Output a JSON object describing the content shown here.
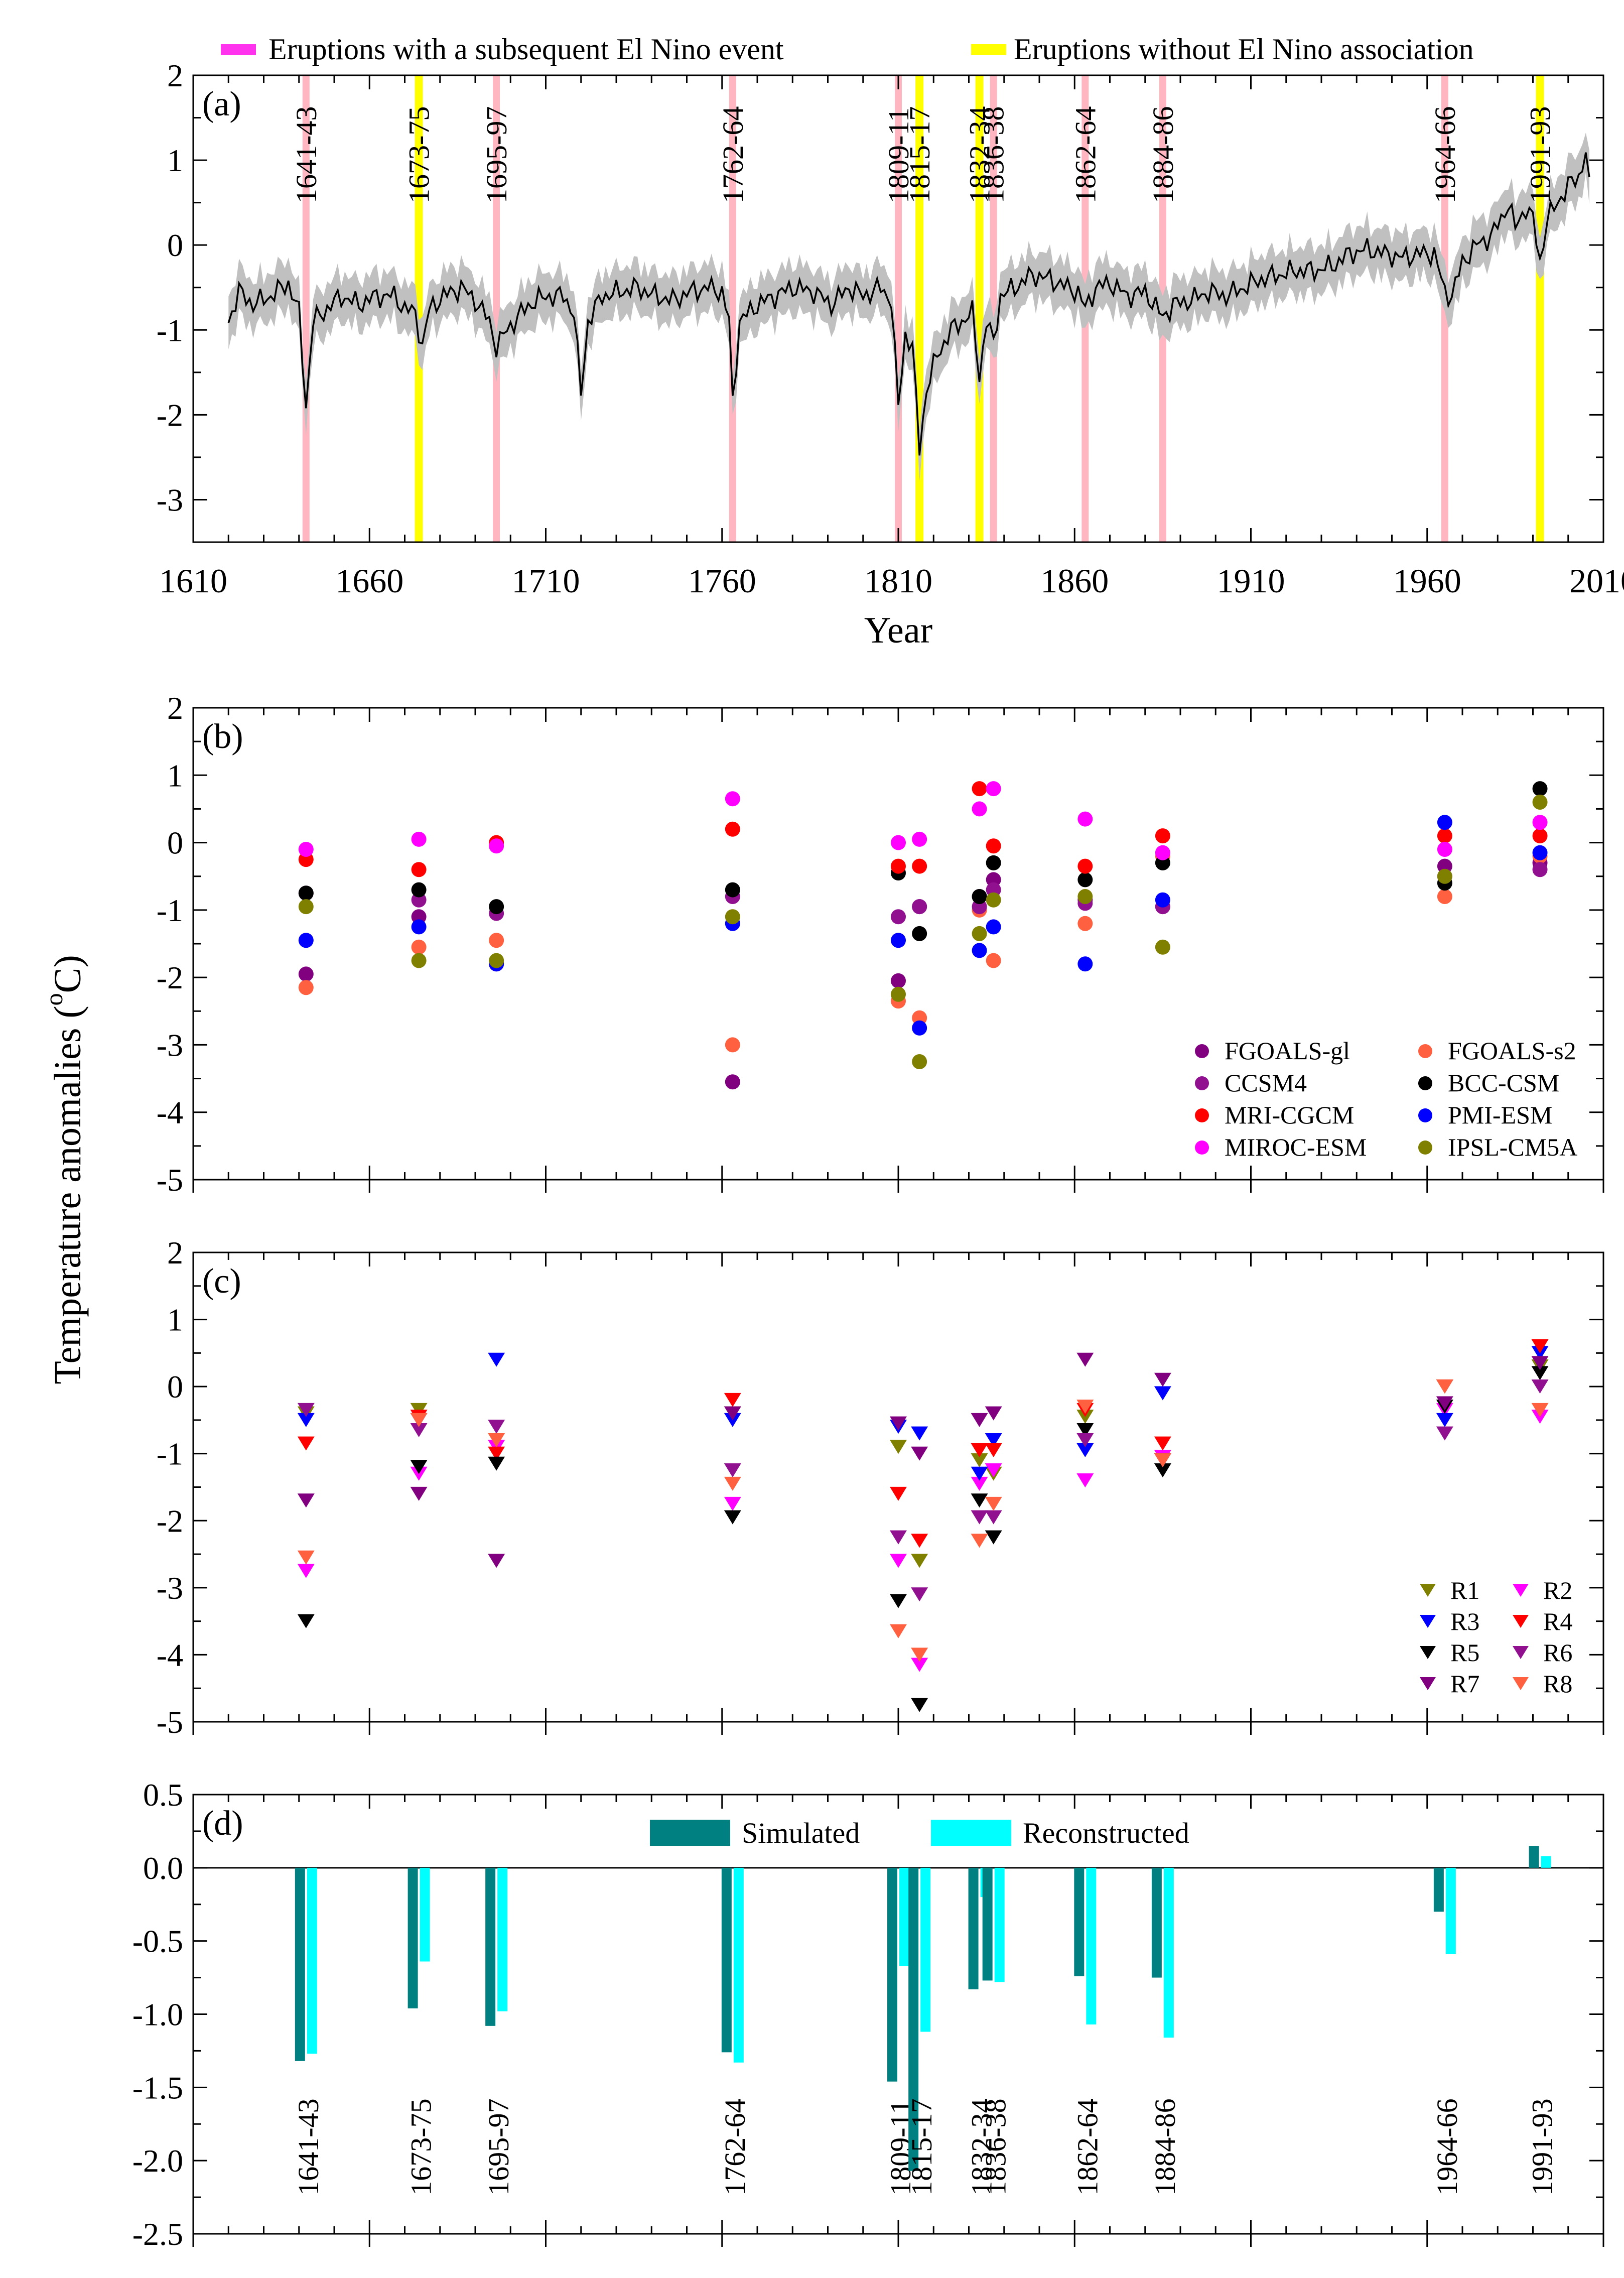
{
  "figure": {
    "y_axis_label_main": "Temperature anomalies (",
    "y_axis_label_sup": "o",
    "y_axis_label_end": "C)",
    "legend_top": {
      "pink_label": "Eruptions with a subsequent El Nino event",
      "yellow_label": "Eruptions without El Nino association"
    }
  },
  "colors": {
    "pink_band": "#ffb6c1",
    "pink_legend": "#ff33ee",
    "yellow_band": "#ffff00",
    "line": "#000000",
    "envelope": "#c0c0c0",
    "simulated": "#008080",
    "reconstructed": "#00ffff"
  },
  "chart_data": [
    {
      "panel": "(a)",
      "type": "line",
      "x_range": [
        1610,
        2010
      ],
      "ylim": [
        -3.5,
        2
      ],
      "xticks": [
        1610,
        1660,
        1710,
        1760,
        1810,
        1860,
        1910,
        1960,
        2010
      ],
      "yticks": [
        -3,
        -2,
        -1,
        0,
        1,
        2
      ],
      "xlabel": "Year",
      "eruption_bands": [
        {
          "label": "1641-43",
          "year": 1642,
          "kind": "pink"
        },
        {
          "label": "1673-75",
          "year": 1674,
          "kind": "yellow"
        },
        {
          "label": "1695-97",
          "year": 1696,
          "kind": "pink"
        },
        {
          "label": "1762-64",
          "year": 1763,
          "kind": "pink"
        },
        {
          "label": "1809-11",
          "year": 1810,
          "kind": "pink"
        },
        {
          "label": "1815-17",
          "year": 1816,
          "kind": "yellow"
        },
        {
          "label": "1832-34",
          "year": 1833,
          "kind": "yellow"
        },
        {
          "label": "1836-38",
          "year": 1837,
          "kind": "pink"
        },
        {
          "label": "1862-64",
          "year": 1863,
          "kind": "pink"
        },
        {
          "label": "1884-86",
          "year": 1885,
          "kind": "pink"
        },
        {
          "label": "1964-66",
          "year": 1965,
          "kind": "pink"
        },
        {
          "label": "1991-93",
          "year": 1992,
          "kind": "yellow"
        }
      ],
      "series_anchors": [
        [
          1620,
          -0.9
        ],
        [
          1623,
          -0.55
        ],
        [
          1627,
          -0.7
        ],
        [
          1632,
          -0.6
        ],
        [
          1637,
          -0.45
        ],
        [
          1640,
          -0.8
        ],
        [
          1642,
          -1.9
        ],
        [
          1644,
          -0.9
        ],
        [
          1648,
          -0.75
        ],
        [
          1652,
          -0.6
        ],
        [
          1657,
          -0.7
        ],
        [
          1662,
          -0.6
        ],
        [
          1667,
          -0.6
        ],
        [
          1670,
          -0.75
        ],
        [
          1673,
          -0.8
        ],
        [
          1675,
          -1.2
        ],
        [
          1677,
          -0.75
        ],
        [
          1681,
          -0.6
        ],
        [
          1686,
          -0.5
        ],
        [
          1690,
          -0.65
        ],
        [
          1694,
          -0.9
        ],
        [
          1696,
          -1.2
        ],
        [
          1699,
          -1.0
        ],
        [
          1703,
          -0.8
        ],
        [
          1707,
          -0.65
        ],
        [
          1711,
          -0.6
        ],
        [
          1715,
          -0.6
        ],
        [
          1718,
          -0.8
        ],
        [
          1720,
          -1.75
        ],
        [
          1722,
          -0.9
        ],
        [
          1726,
          -0.6
        ],
        [
          1731,
          -0.55
        ],
        [
          1736,
          -0.5
        ],
        [
          1741,
          -0.6
        ],
        [
          1746,
          -0.65
        ],
        [
          1751,
          -0.55
        ],
        [
          1756,
          -0.5
        ],
        [
          1760,
          -0.55
        ],
        [
          1762,
          -0.9
        ],
        [
          1763,
          -1.85
        ],
        [
          1765,
          -0.9
        ],
        [
          1770,
          -0.7
        ],
        [
          1775,
          -0.6
        ],
        [
          1780,
          -0.5
        ],
        [
          1786,
          -0.55
        ],
        [
          1791,
          -0.7
        ],
        [
          1796,
          -0.5
        ],
        [
          1800,
          -0.6
        ],
        [
          1805,
          -0.5
        ],
        [
          1808,
          -0.65
        ],
        [
          1810,
          -1.9
        ],
        [
          1812,
          -1.05
        ],
        [
          1814,
          -1.2
        ],
        [
          1816,
          -2.4
        ],
        [
          1818,
          -1.7
        ],
        [
          1821,
          -1.3
        ],
        [
          1825,
          -1.0
        ],
        [
          1828,
          -0.9
        ],
        [
          1831,
          -0.8
        ],
        [
          1833,
          -1.55
        ],
        [
          1835,
          -0.9
        ],
        [
          1837,
          -1.15
        ],
        [
          1839,
          -0.6
        ],
        [
          1843,
          -0.5
        ],
        [
          1848,
          -0.35
        ],
        [
          1853,
          -0.4
        ],
        [
          1858,
          -0.5
        ],
        [
          1861,
          -0.55
        ],
        [
          1863,
          -0.75
        ],
        [
          1866,
          -0.5
        ],
        [
          1870,
          -0.45
        ],
        [
          1875,
          -0.6
        ],
        [
          1880,
          -0.55
        ],
        [
          1885,
          -0.85
        ],
        [
          1888,
          -0.7
        ],
        [
          1893,
          -0.65
        ],
        [
          1898,
          -0.55
        ],
        [
          1903,
          -0.6
        ],
        [
          1908,
          -0.5
        ],
        [
          1913,
          -0.4
        ],
        [
          1918,
          -0.35
        ],
        [
          1923,
          -0.3
        ],
        [
          1928,
          -0.3
        ],
        [
          1933,
          -0.25
        ],
        [
          1938,
          -0.1
        ],
        [
          1943,
          -0.05
        ],
        [
          1948,
          -0.1
        ],
        [
          1953,
          -0.15
        ],
        [
          1958,
          -0.1
        ],
        [
          1962,
          -0.1
        ],
        [
          1965,
          -0.55
        ],
        [
          1967,
          -0.6
        ],
        [
          1970,
          -0.2
        ],
        [
          1974,
          0.0
        ],
        [
          1978,
          0.1
        ],
        [
          1981,
          0.3
        ],
        [
          1983,
          0.5
        ],
        [
          1985,
          0.2
        ],
        [
          1988,
          0.45
        ],
        [
          1990,
          0.3
        ],
        [
          1992,
          -0.2
        ],
        [
          1994,
          0.3
        ],
        [
          1997,
          0.5
        ],
        [
          2000,
          0.7
        ],
        [
          2003,
          0.8
        ],
        [
          2005,
          1.1
        ],
        [
          2006,
          0.8
        ]
      ]
    },
    {
      "panel": "(b)",
      "type": "scatter",
      "x_range": [
        1610,
        2010
      ],
      "ylim": [
        -5,
        2
      ],
      "yticks": [
        -5,
        -4,
        -3,
        -2,
        -1,
        0,
        1,
        2
      ],
      "groups_x": [
        1642,
        1674,
        1696,
        1763,
        1810,
        1816,
        1833,
        1837,
        1863,
        1885,
        1965,
        1992
      ],
      "series": [
        {
          "name": "FGOALS-gl",
          "color": "#800080",
          "values": [
            -1.95,
            -1.1,
            -1.8,
            -3.55,
            -2.05,
            -0.95,
            -0.8,
            -0.55,
            -0.85,
            -0.95,
            -0.35,
            -0.3
          ]
        },
        {
          "name": "FGOALS-s2",
          "color": "#ff6040",
          "values": [
            -2.15,
            -1.55,
            -1.45,
            -3.0,
            -2.35,
            -2.6,
            -1.0,
            -1.75,
            -1.2,
            -0.2,
            -0.8,
            -0.2
          ]
        },
        {
          "name": "CCSM4",
          "color": "#901090",
          "values": [
            -0.75,
            -0.85,
            -1.05,
            -0.8,
            -1.1,
            -0.95,
            -0.95,
            -0.7,
            -0.9,
            -0.95,
            -0.5,
            -0.4
          ]
        },
        {
          "name": "BCC-CSM",
          "color": "#000000",
          "values": [
            -0.75,
            -0.7,
            -0.95,
            -0.7,
            -0.45,
            -1.35,
            -0.8,
            -0.3,
            -0.55,
            -0.3,
            -0.6,
            0.8
          ]
        },
        {
          "name": "MRI-CGCM",
          "color": "#ff0000",
          "values": [
            -0.25,
            -0.4,
            0.0,
            0.2,
            -0.35,
            -0.35,
            0.8,
            -0.05,
            -0.35,
            0.1,
            0.1,
            0.1
          ]
        },
        {
          "name": "PMI-ESM",
          "color": "#0000ff",
          "values": [
            -1.45,
            -1.25,
            -1.8,
            -1.2,
            -1.45,
            -2.75,
            -1.6,
            -1.25,
            -1.8,
            -0.85,
            0.3,
            -0.15
          ]
        },
        {
          "name": "MIROC-ESM",
          "color": "#ff00ff",
          "values": [
            -0.1,
            0.05,
            -0.05,
            0.65,
            0.0,
            0.05,
            0.5,
            0.8,
            0.35,
            -0.15,
            -0.1,
            0.3
          ]
        },
        {
          "name": "IPSL-CM5A",
          "color": "#808000",
          "values": [
            -0.95,
            -1.75,
            -1.75,
            -1.1,
            -2.25,
            -3.25,
            -1.35,
            -0.85,
            -0.8,
            -1.55,
            -0.5,
            0.6
          ]
        }
      ]
    },
    {
      "panel": "(c)",
      "type": "scatter",
      "x_range": [
        1610,
        2010
      ],
      "ylim": [
        -5,
        2
      ],
      "yticks": [
        -5,
        -4,
        -3,
        -2,
        -1,
        0,
        1,
        2
      ],
      "groups_x": [
        1642,
        1674,
        1696,
        1763,
        1810,
        1816,
        1833,
        1837,
        1863,
        1885,
        1965,
        1992
      ],
      "series": [
        {
          "name": "R1",
          "color": "#808000",
          "values": [
            -0.4,
            -0.35,
            -0.9,
            -0.4,
            -0.9,
            -2.6,
            -1.1,
            -1.3,
            -0.45,
            -1.05,
            0.0,
            0.3
          ]
        },
        {
          "name": "R2",
          "color": "#ff00ff",
          "values": [
            -2.75,
            -1.3,
            -0.9,
            -1.75,
            -2.6,
            -4.15,
            -1.45,
            -1.25,
            -1.4,
            -1.05,
            -0.35,
            -0.45
          ]
        },
        {
          "name": "R3",
          "color": "#0000ff",
          "values": [
            -0.5,
            -0.5,
            0.4,
            -0.5,
            -0.6,
            -0.7,
            -1.3,
            -0.8,
            -0.95,
            -0.1,
            -0.5,
            0.5
          ]
        },
        {
          "name": "R4",
          "color": "#ff0000",
          "values": [
            -0.85,
            -0.45,
            -1.0,
            -0.2,
            -1.6,
            -2.3,
            -0.95,
            -0.95,
            -0.35,
            -0.85,
            0.0,
            0.6
          ]
        },
        {
          "name": "R5",
          "color": "#000000",
          "values": [
            -3.5,
            -1.2,
            -1.15,
            -1.95,
            -3.2,
            -4.75,
            -1.7,
            -2.25,
            -0.65,
            -1.25,
            -0.3,
            0.2
          ]
        },
        {
          "name": "R6",
          "color": "#901090",
          "values": [
            -0.35,
            -0.65,
            -0.6,
            -1.25,
            -2.25,
            -3.1,
            -1.95,
            -1.95,
            -0.8,
            -1.1,
            -0.7,
            0.0
          ]
        },
        {
          "name": "R7",
          "color": "#800080",
          "values": [
            -1.7,
            -1.6,
            -2.6,
            -0.4,
            -0.55,
            -1.0,
            -0.5,
            -0.4,
            0.4,
            0.1,
            -0.25,
            0.35
          ]
        },
        {
          "name": "R8",
          "color": "#ff6040",
          "values": [
            -2.55,
            -0.5,
            -0.8,
            -1.45,
            -3.65,
            -4.0,
            -2.3,
            -1.75,
            -0.3,
            -1.1,
            0.0,
            -0.35
          ]
        }
      ]
    },
    {
      "panel": "(d)",
      "type": "bar",
      "x_range": [
        1610,
        2010
      ],
      "ylim": [
        -2.5,
        0.5
      ],
      "yticks": [
        -2.5,
        -2.0,
        -1.5,
        -1.0,
        -0.5,
        0.0,
        0.5
      ],
      "ytick_labels": [
        "-2.5",
        "-2.0",
        "-1.5",
        "-1.0",
        "-0.5",
        "0.0",
        "0.5"
      ],
      "categories": [
        "1641-43",
        "1673-75",
        "1695-97",
        "1762-64",
        "1809-11",
        "1815-17",
        "1832-34",
        "1836-38",
        "1862-64",
        "1884-86",
        "1964-66",
        "1991-93"
      ],
      "groups_x": [
        1642,
        1674,
        1696,
        1763,
        1810,
        1816,
        1833,
        1837,
        1863,
        1885,
        1965,
        1992
      ],
      "series": [
        {
          "name": "Simulated",
          "color": "#008080",
          "values": [
            -1.32,
            -0.96,
            -1.08,
            -1.26,
            -1.46,
            -2.07,
            -0.83,
            -0.77,
            -0.74,
            -0.75,
            -0.3,
            0.15
          ]
        },
        {
          "name": "Reconstructed",
          "color": "#00ffff",
          "values": [
            -1.27,
            -0.64,
            -0.98,
            -1.33,
            -0.67,
            -1.12,
            -0.2,
            -0.78,
            -1.07,
            -1.16,
            -0.59,
            0.08
          ]
        }
      ]
    }
  ]
}
